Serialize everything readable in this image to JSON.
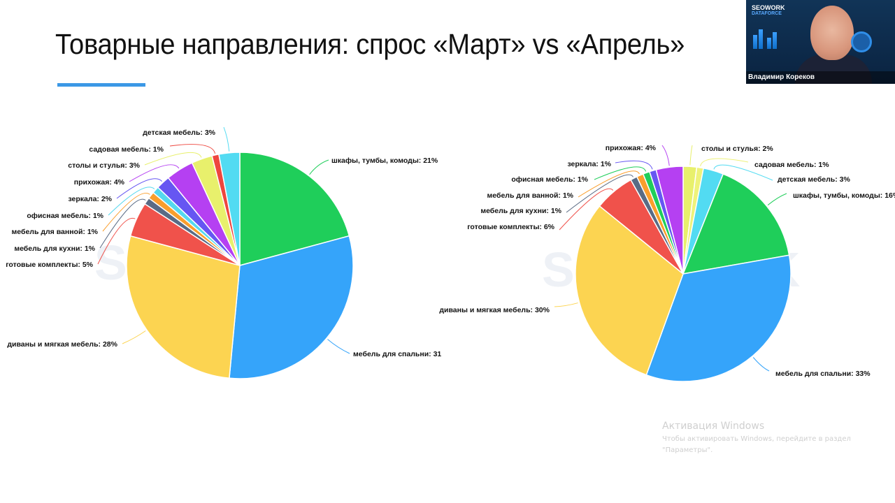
{
  "slide": {
    "title": "Товарные направления: спрос «Март» vs «Апрель»",
    "accent_color": "#3b98e6"
  },
  "webcam": {
    "brand_line1": "SEOWORK",
    "brand_line2": "DATAFORCE",
    "presenter_name": "Владимир Кореков"
  },
  "windows_activation": {
    "heading": "Активация Windows",
    "line1": "Чтобы активировать Windows, перейдите в раздел",
    "line2": "\"Параметры\"."
  },
  "chart_data": [
    {
      "type": "pie",
      "title": "Март",
      "watermark": "SEOWORK",
      "start_angle_deg": 0,
      "direction": "clockwise",
      "slices": [
        {
          "label": "шкафы, тумбы, комоды",
          "value": 21,
          "display": "шкафы, тумбы, комоды: 21%",
          "color": "#1fce5a"
        },
        {
          "label": "мебель для спальни",
          "value": 31,
          "display": "мебель для спальни: 31",
          "color": "#35a4fa"
        },
        {
          "label": "диваны и мягкая мебель",
          "value": 28,
          "display": "диваны и мягкая мебель: 28%",
          "color": "#fcd451"
        },
        {
          "label": "готовые комплекты",
          "value": 5,
          "display": "готовые комплекты: 5%",
          "color": "#f0524b"
        },
        {
          "label": "мебель для кухни",
          "value": 1,
          "display": "мебель для кухни: 1%",
          "color": "#5a6b85"
        },
        {
          "label": "мебель для ванной",
          "value": 1,
          "display": "мебель для ванной: 1%",
          "color": "#fa9e2c"
        },
        {
          "label": "офисная мебель",
          "value": 1,
          "display": "офисная мебель: 1%",
          "color": "#55d8ee"
        },
        {
          "label": "зеркала",
          "value": 2,
          "display": "зеркала: 2%",
          "color": "#6656f2"
        },
        {
          "label": "прихожая",
          "value": 4,
          "display": "прихожая: 4%",
          "color": "#b540f2"
        },
        {
          "label": "столы и стулья",
          "value": 3,
          "display": "столы и стулья: 3%",
          "color": "#e8f06c"
        },
        {
          "label": "садовая мебель",
          "value": 1,
          "display": "садовая мебель: 1%",
          "color": "#ee463e"
        },
        {
          "label": "детская мебель",
          "value": 3,
          "display": "детская мебель: 3%",
          "color": "#52dbf2"
        }
      ]
    },
    {
      "type": "pie",
      "title": "Апрель",
      "watermark": "SEOWORK",
      "start_angle_deg": 0,
      "direction": "clockwise",
      "slices": [
        {
          "label": "столы и стулья",
          "value": 2,
          "display": "столы и стулья: 2%",
          "color": "#e8f06c"
        },
        {
          "label": "садовая мебель",
          "value": 1,
          "display": "садовая мебель: 1%",
          "color": "#eef27a"
        },
        {
          "label": "детская мебель",
          "value": 3,
          "display": "детская мебель: 3%",
          "color": "#52dbf2"
        },
        {
          "label": "шкафы, тумбы, комоды",
          "value": 16,
          "display": "шкафы, тумбы, комоды: 16%",
          "color": "#1fce5a"
        },
        {
          "label": "мебель для спальни",
          "value": 33,
          "display": "мебель для спальни: 33%",
          "color": "#35a4fa"
        },
        {
          "label": "диваны и мягкая мебель",
          "value": 30,
          "display": "диваны и мягкая мебель: 30%",
          "color": "#fcd451"
        },
        {
          "label": "готовые комплекты",
          "value": 6,
          "display": "готовые комплекты: 6%",
          "color": "#f0524b"
        },
        {
          "label": "мебель для кухни",
          "value": 1,
          "display": "мебель для кухни: 1%",
          "color": "#5a6b85"
        },
        {
          "label": "мебель для ванной",
          "value": 1,
          "display": "мебель для ванной: 1%",
          "color": "#fa9e2c"
        },
        {
          "label": "офисная мебель",
          "value": 1,
          "display": "офисная мебель: 1%",
          "color": "#1fce5a"
        },
        {
          "label": "зеркала",
          "value": 1,
          "display": "зеркала: 1%",
          "color": "#6656f2"
        },
        {
          "label": "прихожая",
          "value": 4,
          "display": "прихожая: 4%",
          "color": "#b540f2"
        }
      ]
    }
  ]
}
